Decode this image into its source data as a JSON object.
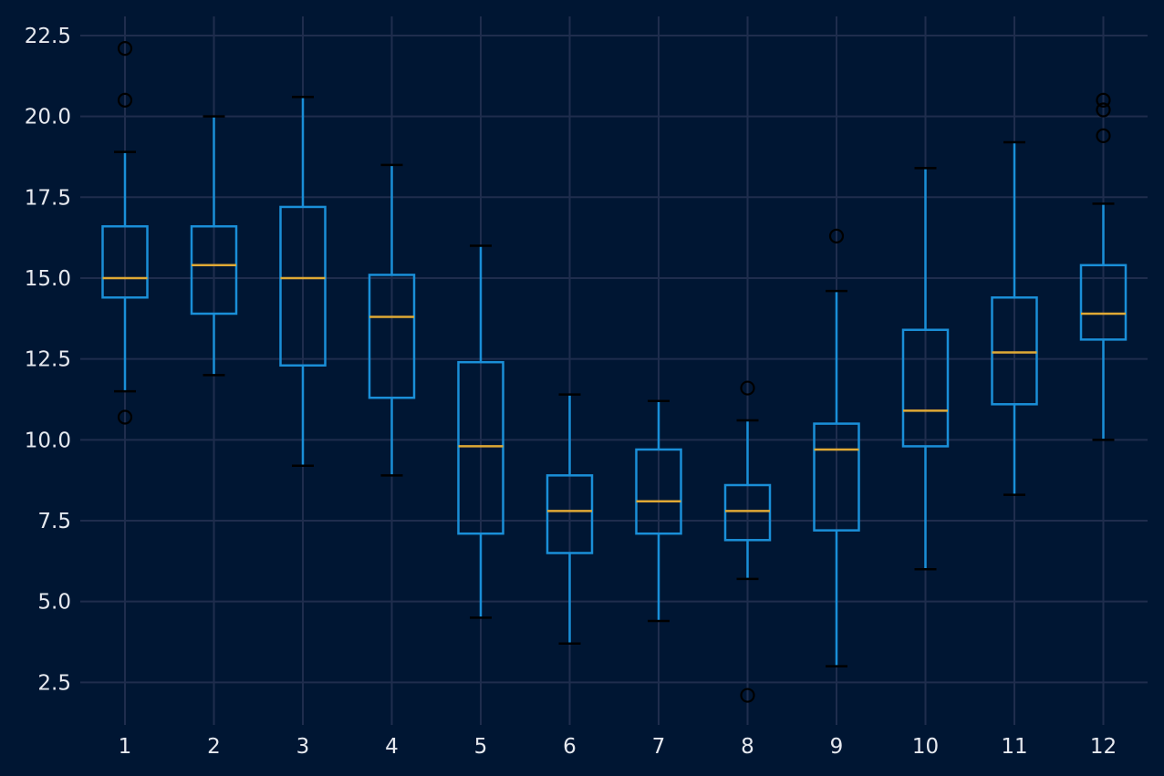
{
  "chart_data": {
    "type": "boxplot",
    "title": "",
    "xlabel": "",
    "ylabel": "",
    "categories": [
      "1",
      "2",
      "3",
      "4",
      "5",
      "6",
      "7",
      "8",
      "9",
      "10",
      "11",
      "12"
    ],
    "y_ticks": [
      "2.5",
      "5.0",
      "7.5",
      "10.0",
      "12.5",
      "15.0",
      "17.5",
      "20.0",
      "22.5"
    ],
    "ylim": [
      1.2,
      23.1
    ],
    "grid": true,
    "legend": "none",
    "boxes": [
      {
        "category": "1",
        "whisker_low": 11.5,
        "q1": 14.4,
        "median": 15.0,
        "q3": 16.6,
        "whisker_high": 18.9,
        "outliers": [
          22.1,
          20.5,
          10.7
        ]
      },
      {
        "category": "2",
        "whisker_low": 12.0,
        "q1": 13.9,
        "median": 15.4,
        "q3": 16.6,
        "whisker_high": 20.0,
        "outliers": []
      },
      {
        "category": "3",
        "whisker_low": 9.2,
        "q1": 12.3,
        "median": 15.0,
        "q3": 17.2,
        "whisker_high": 20.6,
        "outliers": []
      },
      {
        "category": "4",
        "whisker_low": 8.9,
        "q1": 11.3,
        "median": 13.8,
        "q3": 15.1,
        "whisker_high": 18.5,
        "outliers": []
      },
      {
        "category": "5",
        "whisker_low": 4.5,
        "q1": 7.1,
        "median": 9.8,
        "q3": 12.4,
        "whisker_high": 16.0,
        "outliers": []
      },
      {
        "category": "6",
        "whisker_low": 3.7,
        "q1": 6.5,
        "median": 7.8,
        "q3": 8.9,
        "whisker_high": 11.4,
        "outliers": []
      },
      {
        "category": "7",
        "whisker_low": 4.4,
        "q1": 7.1,
        "median": 8.1,
        "q3": 9.7,
        "whisker_high": 11.2,
        "outliers": []
      },
      {
        "category": "8",
        "whisker_low": 5.7,
        "q1": 6.9,
        "median": 7.8,
        "q3": 8.6,
        "whisker_high": 10.6,
        "outliers": [
          11.6,
          2.1
        ]
      },
      {
        "category": "9",
        "whisker_low": 3.0,
        "q1": 7.2,
        "median": 9.7,
        "q3": 10.5,
        "whisker_high": 14.6,
        "outliers": [
          16.3
        ]
      },
      {
        "category": "10",
        "whisker_low": 6.0,
        "q1": 9.8,
        "median": 10.9,
        "q3": 13.4,
        "whisker_high": 18.4,
        "outliers": []
      },
      {
        "category": "11",
        "whisker_low": 8.3,
        "q1": 11.1,
        "median": 12.7,
        "q3": 14.4,
        "whisker_high": 19.2,
        "outliers": []
      },
      {
        "category": "12",
        "whisker_low": 10.0,
        "q1": 13.1,
        "median": 13.9,
        "q3": 15.4,
        "whisker_high": 17.3,
        "outliers": [
          20.5,
          20.2,
          19.4
        ]
      }
    ],
    "colors": {
      "background": "#001633",
      "grid": "#1f2d4d",
      "box": "#1a8fd8",
      "median": "#e0a935",
      "cap": "#000000",
      "outlier": "#000000",
      "text": "#e6e9ef"
    }
  }
}
